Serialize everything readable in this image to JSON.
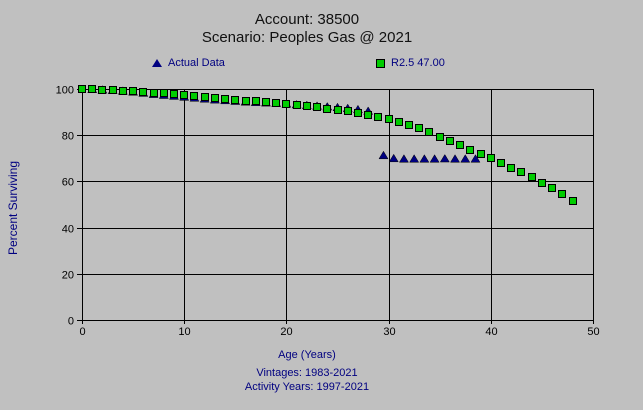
{
  "header": {
    "title_line1": "Account: 38500",
    "title_line2": "Scenario: Peoples Gas @ 2021"
  },
  "legend": {
    "items": [
      {
        "label": "Actual Data",
        "marker": "triangle",
        "color": "#000080"
      },
      {
        "label": "R2.5 47.00",
        "marker": "square",
        "color": "#00cc00"
      }
    ]
  },
  "footer": {
    "xlabel": "Age (Years)",
    "vintages": "Vintages: 1983-2021",
    "activity_years": "Activity Years: 1997-2021"
  },
  "colors": {
    "background": "#c0c0c0",
    "grid": "#000000",
    "tick_text": "#000000",
    "navy_text": "#000080",
    "actual_marker": "#000080",
    "curve_marker": "#00cc00"
  },
  "chart_data": {
    "type": "scatter",
    "title": "Account: 38500",
    "subtitle": "Scenario: Peoples Gas @ 2021",
    "xlabel": "Age (Years)",
    "ylabel": "Percent Surviving",
    "xlim": [
      0,
      50
    ],
    "ylim": [
      0,
      100
    ],
    "x_ticks": [
      0,
      10,
      20,
      30,
      40,
      50
    ],
    "y_ticks": [
      0,
      20,
      40,
      60,
      80,
      100
    ],
    "grid": true,
    "legend_position": "top",
    "series": [
      {
        "name": "Actual Data",
        "marker": "triangle",
        "color": "#000080",
        "points": [
          [
            1,
            99.9
          ],
          [
            2,
            99.7
          ],
          [
            3,
            99.5
          ],
          [
            4,
            99.2
          ],
          [
            5,
            98.8
          ],
          [
            6,
            98.3
          ],
          [
            7,
            97.8
          ],
          [
            8,
            97.4
          ],
          [
            9,
            97.0
          ],
          [
            10,
            96.6
          ],
          [
            11,
            96.2
          ],
          [
            12,
            95.8
          ],
          [
            13,
            95.4
          ],
          [
            14,
            95.1
          ],
          [
            15,
            94.8
          ],
          [
            16,
            94.5
          ],
          [
            17,
            94.3
          ],
          [
            18,
            94.1
          ],
          [
            19,
            93.9
          ],
          [
            20,
            93.6
          ],
          [
            21,
            93.3
          ],
          [
            22,
            93.0
          ],
          [
            23,
            92.7
          ],
          [
            24,
            92.4
          ],
          [
            25,
            92.1
          ],
          [
            26,
            91.7
          ],
          [
            27,
            91.2
          ],
          [
            28,
            90.5
          ],
          [
            29.5,
            71.3
          ],
          [
            30.5,
            70.0
          ],
          [
            31.5,
            69.8
          ],
          [
            32.5,
            69.8
          ],
          [
            33.5,
            69.8
          ],
          [
            34.5,
            69.8
          ],
          [
            35.5,
            69.9
          ],
          [
            36.5,
            69.8
          ],
          [
            37.5,
            69.8
          ],
          [
            38.5,
            69.8
          ]
        ]
      },
      {
        "name": "R2.5 47.00",
        "marker": "square",
        "color": "#00cc00",
        "border_color": "#000000",
        "points": [
          [
            0,
            100.0
          ],
          [
            1,
            99.8
          ],
          [
            2,
            99.6
          ],
          [
            3,
            99.4
          ],
          [
            4,
            99.2
          ],
          [
            5,
            99.0
          ],
          [
            6,
            98.7
          ],
          [
            7,
            98.4
          ],
          [
            8,
            98.1
          ],
          [
            9,
            97.8
          ],
          [
            10,
            97.4
          ],
          [
            11,
            97.0
          ],
          [
            12,
            96.6
          ],
          [
            13,
            96.2
          ],
          [
            14,
            95.8
          ],
          [
            15,
            95.4
          ],
          [
            16,
            95.0
          ],
          [
            17,
            94.6
          ],
          [
            18,
            94.2
          ],
          [
            19,
            93.8
          ],
          [
            20,
            93.4
          ],
          [
            21,
            93.0
          ],
          [
            22,
            92.5
          ],
          [
            23,
            92.0
          ],
          [
            24,
            91.5
          ],
          [
            25,
            91.0
          ],
          [
            26,
            90.4
          ],
          [
            27,
            89.7
          ],
          [
            28,
            88.9
          ],
          [
            29,
            88.0
          ],
          [
            30,
            86.9
          ],
          [
            31,
            85.7
          ],
          [
            32,
            84.4
          ],
          [
            33,
            83.0
          ],
          [
            34,
            81.4
          ],
          [
            35,
            79.4
          ],
          [
            36,
            77.5
          ],
          [
            37,
            75.6
          ],
          [
            38,
            73.7
          ],
          [
            39,
            71.9
          ],
          [
            40,
            70.0
          ],
          [
            41,
            68.0
          ],
          [
            42,
            66.0
          ],
          [
            43,
            63.9
          ],
          [
            44,
            61.7
          ],
          [
            45,
            59.4
          ],
          [
            46,
            57.0
          ],
          [
            47,
            54.4
          ],
          [
            48,
            51.7
          ]
        ]
      }
    ]
  }
}
